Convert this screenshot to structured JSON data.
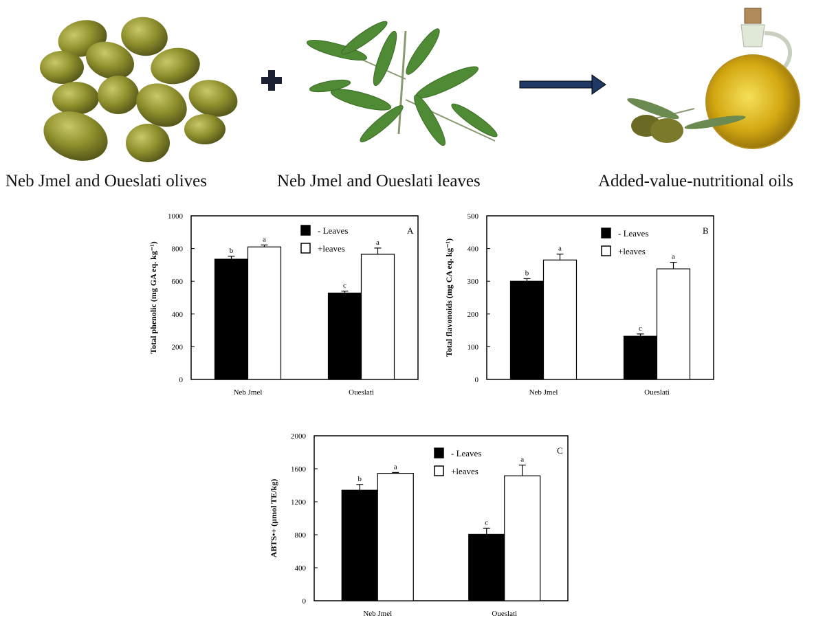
{
  "captions": {
    "olives": "Neb Jmel and Oueslati olives",
    "leaves": "Neb Jmel and Oueslati  leaves",
    "oils": "Added-value-nutritional oils"
  },
  "icons": {
    "plus": "plus-icon",
    "arrow": "right-arrow-icon"
  },
  "colors": {
    "minus_leaves_bar": "#000000",
    "plus_leaves_bar": "#ffffff",
    "arrow": "#1f3864"
  },
  "chart_data": [
    {
      "type": "bar",
      "panel": "A",
      "ylabel": "Total phenolic (mg GA eq. kg⁻¹)",
      "categories": [
        "Neb Jmel",
        "Oueslati"
      ],
      "ylim": [
        0,
        1000
      ],
      "yticks": [
        "0",
        "200",
        "400",
        "600",
        "800",
        "1000"
      ],
      "legend_position": "top-right",
      "series": [
        {
          "name": "- Leaves",
          "values": [
            735,
            528
          ],
          "errors": [
            18,
            12
          ],
          "letters": [
            "b",
            "c"
          ]
        },
        {
          "name": "+leaves",
          "values": [
            810,
            765
          ],
          "errors": [
            12,
            38
          ],
          "letters": [
            "a",
            "a"
          ]
        }
      ]
    },
    {
      "type": "bar",
      "panel": "B",
      "ylabel": "Total flavonoids (mg CA eq. kg⁻¹)",
      "categories": [
        "Neb Jmel",
        "Oueslati"
      ],
      "ylim": [
        0,
        500
      ],
      "yticks": [
        "0",
        "100",
        "200",
        "300",
        "400",
        "500"
      ],
      "legend_position": "top-right",
      "series": [
        {
          "name": "- Leaves",
          "values": [
            300,
            132
          ],
          "errors": [
            8,
            7
          ],
          "letters": [
            "b",
            "c"
          ]
        },
        {
          "name": "+leaves",
          "values": [
            365,
            338
          ],
          "errors": [
            18,
            20
          ],
          "letters": [
            "a",
            "a"
          ]
        }
      ]
    },
    {
      "type": "bar",
      "panel": "C",
      "ylabel": "ABTS•+ (µmol TE/kg)",
      "categories": [
        "Neb Jmel",
        "Oueslati"
      ],
      "ylim": [
        0,
        2000
      ],
      "yticks": [
        "0",
        "400",
        "800",
        "1200",
        "1600",
        "2000"
      ],
      "legend_position": "top-right",
      "series": [
        {
          "name": "- Leaves",
          "values": [
            1340,
            805
          ],
          "errors": [
            70,
            75
          ],
          "letters": [
            "b",
            "c"
          ]
        },
        {
          "name": "+leaves",
          "values": [
            1545,
            1515
          ],
          "errors": [
            10,
            130
          ],
          "letters": [
            "a",
            "a"
          ]
        }
      ]
    }
  ]
}
